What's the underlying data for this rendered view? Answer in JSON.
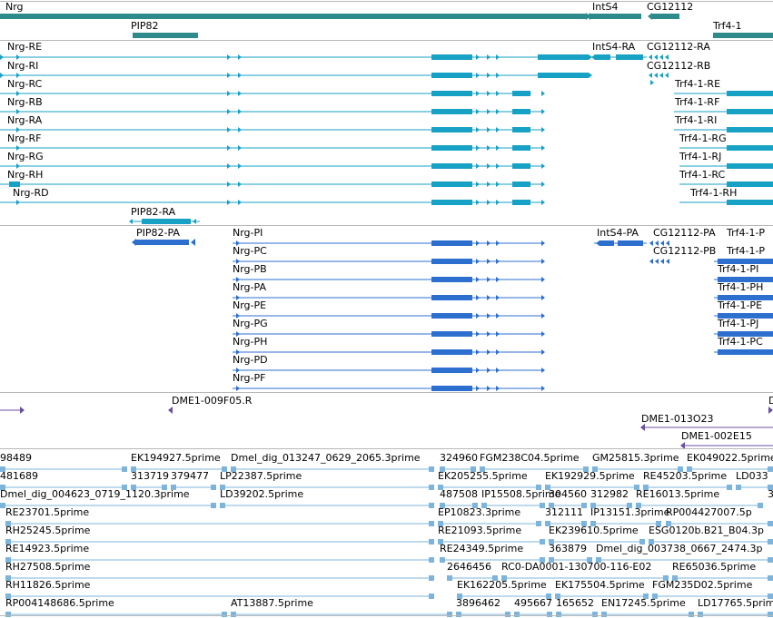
{
  "colors": {
    "gene": "#2e8b8b",
    "transcript": "#17a2c5",
    "protein": "#2c6fcf",
    "clone": "#6b4fa0",
    "est": "#7cb4dc",
    "divider": "#b8b8b8"
  },
  "genes": [
    {
      "label": "Nrg"
    },
    {
      "label": "IntS4"
    },
    {
      "label": "CG12112"
    },
    {
      "label": "PIP82"
    },
    {
      "label": "Trf4-1"
    }
  ],
  "transcripts": [
    {
      "label": "Nrg-RE"
    },
    {
      "label": "Nrg-RI"
    },
    {
      "label": "Nrg-RC"
    },
    {
      "label": "Nrg-RB"
    },
    {
      "label": "Nrg-RA"
    },
    {
      "label": "Nrg-RF"
    },
    {
      "label": "Nrg-RG"
    },
    {
      "label": "Nrg-RH"
    },
    {
      "label": "Nrg-RD"
    },
    {
      "label": "IntS4-RA"
    },
    {
      "label": "CG12112-RA"
    },
    {
      "label": "CG12112-RB"
    },
    {
      "label": "Trf4-1-RE"
    },
    {
      "label": "Trf4-1-RF"
    },
    {
      "label": "Trf4-1-RI"
    },
    {
      "label": "Trf4-1-RG"
    },
    {
      "label": "Trf4-1-RJ"
    },
    {
      "label": "Trf4-1-RC"
    },
    {
      "label": "Trf4-1-RH"
    },
    {
      "label": "PIP82-RA"
    }
  ],
  "proteins": [
    {
      "label": "PIP82-PA"
    },
    {
      "label": "Nrg-PI"
    },
    {
      "label": "Nrg-PC"
    },
    {
      "label": "Nrg-PB"
    },
    {
      "label": "Nrg-PA"
    },
    {
      "label": "Nrg-PE"
    },
    {
      "label": "Nrg-PG"
    },
    {
      "label": "Nrg-PH"
    },
    {
      "label": "Nrg-PD"
    },
    {
      "label": "Nrg-PF"
    },
    {
      "label": "IntS4-PA"
    },
    {
      "label": "CG12112-PA"
    },
    {
      "label": "CG12112-PB"
    },
    {
      "label": "Trf4-1-P"
    },
    {
      "label": "Trf4-1-P"
    },
    {
      "label": "Trf4-1-PI"
    },
    {
      "label": "Trf4-1-PH"
    },
    {
      "label": "Trf4-1-PE"
    },
    {
      "label": "Trf4-1-PJ"
    },
    {
      "label": "Trf4-1-PC"
    }
  ],
  "clones": [
    {
      "label": "DME1-009F05.R"
    },
    {
      "label": "DME1-013O23"
    },
    {
      "label": "DME1-002E15"
    },
    {
      "label": "D"
    }
  ],
  "ests": [
    {
      "label": "98489"
    },
    {
      "label": "EK194927.5prime"
    },
    {
      "label": "Dmel_dig_013247_0629_2065.3prime"
    },
    {
      "label": "324960"
    },
    {
      "label": "FGM238C04.5prime"
    },
    {
      "label": "GM25815.3prime"
    },
    {
      "label": "EK049022.5prime"
    },
    {
      "label": "481689"
    },
    {
      "label": "313719"
    },
    {
      "label": "379477"
    },
    {
      "label": "LP22387.5prime"
    },
    {
      "label": "EK205255.5prime"
    },
    {
      "label": "EK192929.5prime"
    },
    {
      "label": "RE45203.5prime"
    },
    {
      "label": "LD033"
    },
    {
      "label": "Dmel_dig_004623_0719_1120.3prime"
    },
    {
      "label": "LD39202.5prime"
    },
    {
      "label": "487508"
    },
    {
      "label": "IP15508.5prime"
    },
    {
      "label": "304560"
    },
    {
      "label": "312982"
    },
    {
      "label": "RE16013.5prime"
    },
    {
      "label": "3"
    },
    {
      "label": "RE23701.5prime"
    },
    {
      "label": "EP10823.3prime"
    },
    {
      "label": "312111"
    },
    {
      "label": "IP13151.3prime"
    },
    {
      "label": "RP004427007.5p"
    },
    {
      "label": "RH25245.5prime"
    },
    {
      "label": "RE21093.5prime"
    },
    {
      "label": "EK239610.5prime"
    },
    {
      "label": "ESG0120b.B21_B04.3p"
    },
    {
      "label": "RE14923.5prime"
    },
    {
      "label": "RE24349.5prime"
    },
    {
      "label": "363879"
    },
    {
      "label": "Dmel_dig_003738_0667_2474.3p"
    },
    {
      "label": "RH27508.5prime"
    },
    {
      "label": "2646456"
    },
    {
      "label": "RC0-DA0001-130700-116-E02"
    },
    {
      "label": "RE65036.5prime"
    },
    {
      "label": "RH11826.5prime"
    },
    {
      "label": "EK162205.5prime"
    },
    {
      "label": "EK175504.5prime"
    },
    {
      "label": "FGM235D02.5prime"
    },
    {
      "label": "RP004148686.5prime"
    },
    {
      "label": "AT13887.5prime"
    },
    {
      "label": "3896462"
    },
    {
      "label": "495667"
    },
    {
      "label": "165652"
    },
    {
      "label": "EN17245.5prime"
    },
    {
      "label": "LD17765.5prime"
    }
  ]
}
